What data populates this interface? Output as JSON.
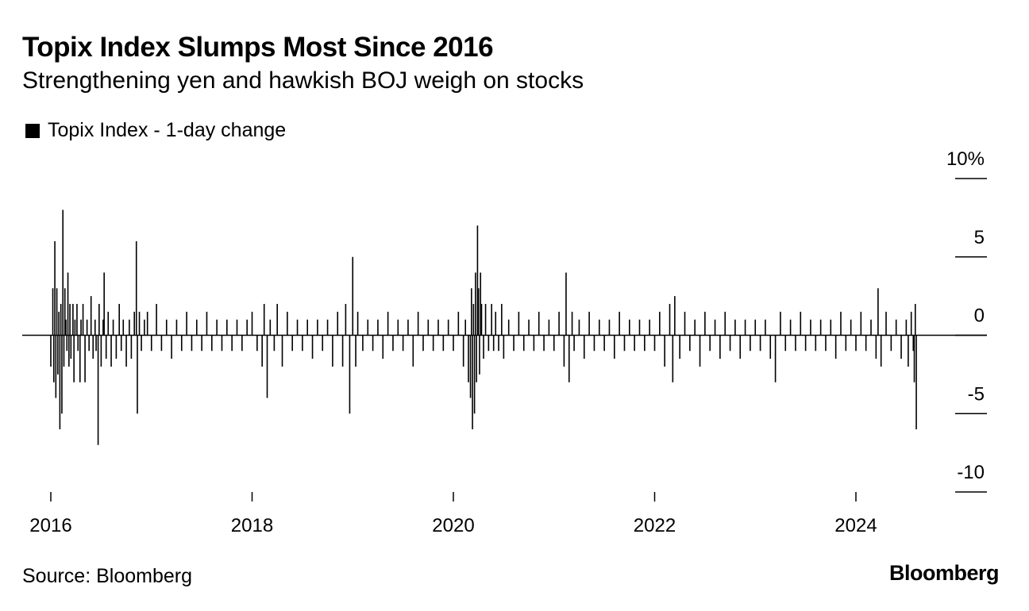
{
  "header": {
    "title": "Topix Index Slumps Most Since 2016",
    "subtitle": "Strengthening yen and hawkish BOJ weigh on stocks"
  },
  "legend": {
    "label": "Topix Index - 1-day change",
    "color": "#000000"
  },
  "footer": {
    "source": "Source: Bloomberg",
    "brand": "Bloomberg"
  },
  "chart_data": {
    "type": "bar",
    "title": "Topix Index Slumps Most Since 2016",
    "subtitle": "Strengthening yen and hawkish BOJ weigh on stocks",
    "series_name": "Topix Index - 1-day change",
    "xlabel": "",
    "ylabel": "",
    "x_ticks": [
      "2016",
      "2018",
      "2020",
      "2022",
      "2024"
    ],
    "x_tick_values": [
      2016,
      2018,
      2020,
      2022,
      2024
    ],
    "xlim": [
      2015.72,
      2025.3
    ],
    "y_ticks": [
      10,
      5,
      0,
      -5,
      -10
    ],
    "y_tick_labels": [
      "10%",
      "5",
      "0",
      "-5",
      "-10"
    ],
    "ylim": [
      -10,
      10
    ],
    "y_axis_position": "right",
    "grid": false,
    "color": "#000000",
    "points": [
      [
        2016.0,
        -2.0
      ],
      [
        2016.02,
        3.0
      ],
      [
        2016.03,
        -3.0
      ],
      [
        2016.04,
        6.0
      ],
      [
        2016.05,
        -4.0
      ],
      [
        2016.06,
        3.0
      ],
      [
        2016.07,
        -2.5
      ],
      [
        2016.08,
        1.5
      ],
      [
        2016.09,
        -6.0
      ],
      [
        2016.1,
        2.0
      ],
      [
        2016.11,
        -5.0
      ],
      [
        2016.12,
        8.0
      ],
      [
        2016.13,
        -2.0
      ],
      [
        2016.14,
        3.0
      ],
      [
        2016.15,
        1.0
      ],
      [
        2016.16,
        -1.0
      ],
      [
        2016.17,
        4.0
      ],
      [
        2016.18,
        -2.0
      ],
      [
        2016.19,
        2.0
      ],
      [
        2016.2,
        -1.5
      ],
      [
        2016.22,
        2.0
      ],
      [
        2016.23,
        -3.0
      ],
      [
        2016.24,
        1.0
      ],
      [
        2016.26,
        2.0
      ],
      [
        2016.27,
        -1.0
      ],
      [
        2016.29,
        -3.0
      ],
      [
        2016.3,
        1.0
      ],
      [
        2016.32,
        2.0
      ],
      [
        2016.34,
        -3.0
      ],
      [
        2016.36,
        1.0
      ],
      [
        2016.38,
        -1.0
      ],
      [
        2016.4,
        2.5
      ],
      [
        2016.42,
        -1.5
      ],
      [
        2016.44,
        1.0
      ],
      [
        2016.45,
        -1.0
      ],
      [
        2016.47,
        -7.0
      ],
      [
        2016.48,
        2.0
      ],
      [
        2016.5,
        -2.0
      ],
      [
        2016.52,
        1.0
      ],
      [
        2016.53,
        4.0
      ],
      [
        2016.55,
        -1.5
      ],
      [
        2016.57,
        1.5
      ],
      [
        2016.6,
        -2.0
      ],
      [
        2016.62,
        1.0
      ],
      [
        2016.65,
        -1.5
      ],
      [
        2016.68,
        2.0
      ],
      [
        2016.7,
        -1.0
      ],
      [
        2016.72,
        1.0
      ],
      [
        2016.75,
        -2.0
      ],
      [
        2016.78,
        1.0
      ],
      [
        2016.8,
        -1.5
      ],
      [
        2016.83,
        1.5
      ],
      [
        2016.85,
        6.0
      ],
      [
        2016.86,
        -5.0
      ],
      [
        2016.88,
        1.5
      ],
      [
        2016.9,
        -1.0
      ],
      [
        2016.93,
        1.0
      ],
      [
        2016.96,
        1.5
      ],
      [
        2017.0,
        -1.0
      ],
      [
        2017.05,
        2.0
      ],
      [
        2017.1,
        -1.0
      ],
      [
        2017.15,
        1.0
      ],
      [
        2017.2,
        -1.5
      ],
      [
        2017.25,
        1.0
      ],
      [
        2017.3,
        -1.0
      ],
      [
        2017.35,
        1.5
      ],
      [
        2017.4,
        -1.0
      ],
      [
        2017.45,
        1.0
      ],
      [
        2017.5,
        -1.0
      ],
      [
        2017.55,
        1.5
      ],
      [
        2017.6,
        -1.0
      ],
      [
        2017.65,
        1.0
      ],
      [
        2017.7,
        -1.0
      ],
      [
        2017.75,
        1.0
      ],
      [
        2017.8,
        -1.0
      ],
      [
        2017.85,
        1.0
      ],
      [
        2017.9,
        -1.0
      ],
      [
        2017.95,
        1.0
      ],
      [
        2018.0,
        1.5
      ],
      [
        2018.05,
        -1.0
      ],
      [
        2018.1,
        -2.0
      ],
      [
        2018.12,
        2.0
      ],
      [
        2018.15,
        -4.0
      ],
      [
        2018.18,
        1.0
      ],
      [
        2018.22,
        -1.0
      ],
      [
        2018.25,
        2.0
      ],
      [
        2018.3,
        -2.0
      ],
      [
        2018.35,
        1.5
      ],
      [
        2018.4,
        -1.0
      ],
      [
        2018.45,
        1.0
      ],
      [
        2018.5,
        -1.0
      ],
      [
        2018.55,
        1.0
      ],
      [
        2018.6,
        -1.5
      ],
      [
        2018.65,
        1.0
      ],
      [
        2018.7,
        -1.0
      ],
      [
        2018.75,
        1.0
      ],
      [
        2018.8,
        -2.0
      ],
      [
        2018.85,
        1.5
      ],
      [
        2018.9,
        -2.0
      ],
      [
        2018.93,
        2.0
      ],
      [
        2018.97,
        -5.0
      ],
      [
        2019.0,
        5.0
      ],
      [
        2019.03,
        -2.0
      ],
      [
        2019.05,
        1.5
      ],
      [
        2019.1,
        -1.0
      ],
      [
        2019.15,
        1.0
      ],
      [
        2019.2,
        -1.0
      ],
      [
        2019.25,
        1.0
      ],
      [
        2019.3,
        -1.5
      ],
      [
        2019.35,
        1.5
      ],
      [
        2019.4,
        -1.0
      ],
      [
        2019.45,
        1.0
      ],
      [
        2019.5,
        -1.0
      ],
      [
        2019.55,
        1.0
      ],
      [
        2019.6,
        -2.0
      ],
      [
        2019.65,
        1.5
      ],
      [
        2019.7,
        -1.0
      ],
      [
        2019.75,
        1.0
      ],
      [
        2019.8,
        -1.0
      ],
      [
        2019.85,
        1.0
      ],
      [
        2019.9,
        -1.0
      ],
      [
        2019.95,
        1.0
      ],
      [
        2020.0,
        -1.0
      ],
      [
        2020.05,
        1.5
      ],
      [
        2020.1,
        -2.0
      ],
      [
        2020.12,
        1.0
      ],
      [
        2020.15,
        -3.0
      ],
      [
        2020.17,
        -4.0
      ],
      [
        2020.18,
        3.0
      ],
      [
        2020.19,
        -6.0
      ],
      [
        2020.2,
        2.0
      ],
      [
        2020.21,
        -5.0
      ],
      [
        2020.22,
        4.0
      ],
      [
        2020.23,
        -3.0
      ],
      [
        2020.24,
        7.0
      ],
      [
        2020.25,
        3.0
      ],
      [
        2020.26,
        -2.5
      ],
      [
        2020.27,
        4.0
      ],
      [
        2020.28,
        2.0
      ],
      [
        2020.3,
        -1.5
      ],
      [
        2020.32,
        2.0
      ],
      [
        2020.35,
        -1.0
      ],
      [
        2020.38,
        2.0
      ],
      [
        2020.4,
        -1.0
      ],
      [
        2020.42,
        1.5
      ],
      [
        2020.45,
        -1.0
      ],
      [
        2020.48,
        2.0
      ],
      [
        2020.5,
        -1.5
      ],
      [
        2020.55,
        1.0
      ],
      [
        2020.6,
        -1.0
      ],
      [
        2020.65,
        1.5
      ],
      [
        2020.7,
        -1.0
      ],
      [
        2020.75,
        1.0
      ],
      [
        2020.8,
        -1.0
      ],
      [
        2020.85,
        1.5
      ],
      [
        2020.9,
        -1.0
      ],
      [
        2020.95,
        1.0
      ],
      [
        2021.0,
        -1.0
      ],
      [
        2021.05,
        1.5
      ],
      [
        2021.1,
        -2.0
      ],
      [
        2021.12,
        4.0
      ],
      [
        2021.15,
        -3.0
      ],
      [
        2021.18,
        1.5
      ],
      [
        2021.2,
        -1.0
      ],
      [
        2021.25,
        1.0
      ],
      [
        2021.3,
        -1.5
      ],
      [
        2021.35,
        1.5
      ],
      [
        2021.4,
        -1.0
      ],
      [
        2021.45,
        1.0
      ],
      [
        2021.5,
        -1.0
      ],
      [
        2021.55,
        1.0
      ],
      [
        2021.6,
        -1.5
      ],
      [
        2021.65,
        1.5
      ],
      [
        2021.7,
        -1.0
      ],
      [
        2021.75,
        1.0
      ],
      [
        2021.8,
        -1.0
      ],
      [
        2021.85,
        1.0
      ],
      [
        2021.9,
        -1.0
      ],
      [
        2021.95,
        1.0
      ],
      [
        2022.0,
        -1.0
      ],
      [
        2022.05,
        1.5
      ],
      [
        2022.1,
        -2.0
      ],
      [
        2022.15,
        2.0
      ],
      [
        2022.18,
        -3.0
      ],
      [
        2022.2,
        2.5
      ],
      [
        2022.25,
        -1.5
      ],
      [
        2022.3,
        1.5
      ],
      [
        2022.35,
        -1.0
      ],
      [
        2022.4,
        1.0
      ],
      [
        2022.45,
        -2.0
      ],
      [
        2022.5,
        1.5
      ],
      [
        2022.55,
        -1.0
      ],
      [
        2022.6,
        1.0
      ],
      [
        2022.65,
        -1.5
      ],
      [
        2022.7,
        1.5
      ],
      [
        2022.75,
        -1.0
      ],
      [
        2022.8,
        1.0
      ],
      [
        2022.85,
        -1.5
      ],
      [
        2022.9,
        1.0
      ],
      [
        2022.95,
        -1.0
      ],
      [
        2023.0,
        1.0
      ],
      [
        2023.05,
        -1.0
      ],
      [
        2023.1,
        1.0
      ],
      [
        2023.15,
        -1.5
      ],
      [
        2023.2,
        -3.0
      ],
      [
        2023.25,
        1.5
      ],
      [
        2023.3,
        -1.0
      ],
      [
        2023.35,
        1.0
      ],
      [
        2023.4,
        -1.0
      ],
      [
        2023.45,
        1.5
      ],
      [
        2023.5,
        -1.0
      ],
      [
        2023.55,
        1.0
      ],
      [
        2023.6,
        -1.0
      ],
      [
        2023.65,
        1.0
      ],
      [
        2023.7,
        -1.0
      ],
      [
        2023.75,
        1.0
      ],
      [
        2023.8,
        -1.5
      ],
      [
        2023.85,
        1.5
      ],
      [
        2023.9,
        -1.0
      ],
      [
        2023.95,
        1.0
      ],
      [
        2024.0,
        -1.0
      ],
      [
        2024.05,
        1.5
      ],
      [
        2024.1,
        -1.0
      ],
      [
        2024.15,
        1.0
      ],
      [
        2024.2,
        -1.5
      ],
      [
        2024.22,
        3.0
      ],
      [
        2024.25,
        -2.0
      ],
      [
        2024.3,
        1.5
      ],
      [
        2024.35,
        -1.0
      ],
      [
        2024.4,
        1.0
      ],
      [
        2024.45,
        -1.5
      ],
      [
        2024.5,
        1.0
      ],
      [
        2024.52,
        -2.0
      ],
      [
        2024.55,
        1.5
      ],
      [
        2024.57,
        -1.0
      ],
      [
        2024.58,
        -3.0
      ],
      [
        2024.59,
        2.0
      ],
      [
        2024.6,
        -6.0
      ]
    ]
  }
}
